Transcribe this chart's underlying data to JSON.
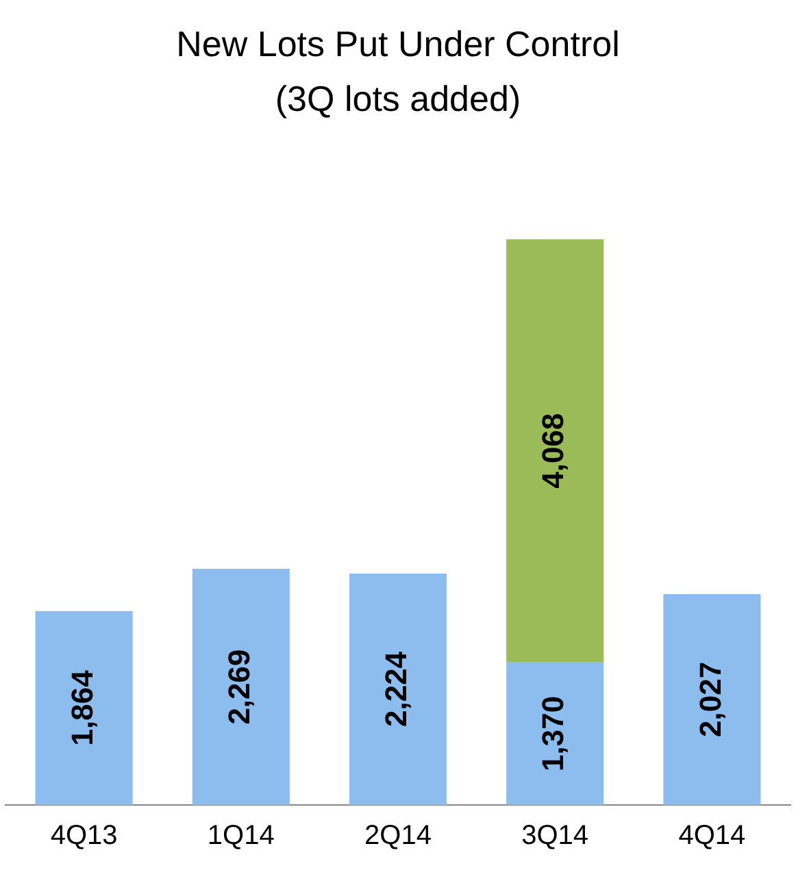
{
  "chart_data": {
    "type": "bar",
    "title": "New Lots Put Under Control\n(3Q lots added)",
    "categories": [
      "4Q13",
      "1Q14",
      "2Q14",
      "3Q14",
      "4Q14"
    ],
    "series": [
      {
        "color": "#8dbdee",
        "values": [
          1864,
          2269,
          2224,
          1370,
          2027
        ],
        "value_labels": [
          "1,864",
          "2,269",
          "2,224",
          "1,370",
          "2,027"
        ]
      },
      {
        "color": "#9bbb59",
        "values": [
          null,
          null,
          null,
          4068,
          null
        ],
        "value_labels": [
          null,
          null,
          null,
          "4,068",
          null
        ]
      }
    ],
    "stacked": true,
    "grid": false,
    "tick_labels": "x"
  }
}
